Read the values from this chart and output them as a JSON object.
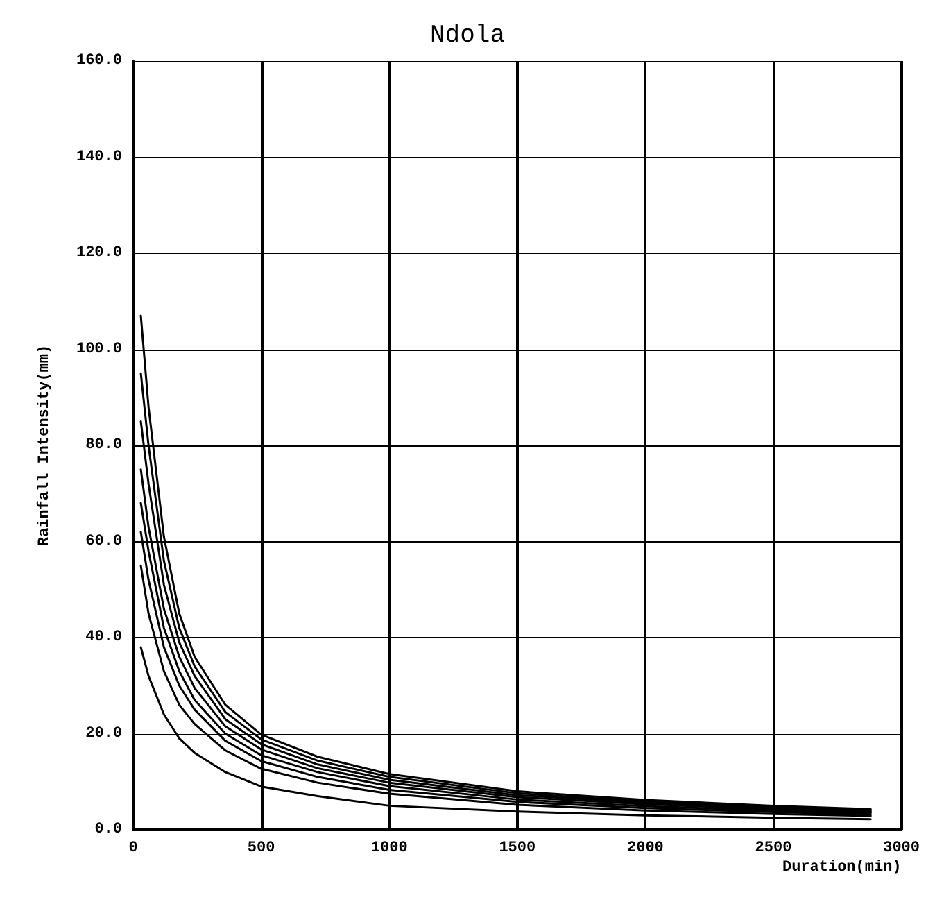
{
  "chart_data": {
    "type": "line",
    "title": "Ndola",
    "xlabel": "Duration(min)",
    "ylabel": "Rainfall Intensity(mm)",
    "x": [
      30,
      60,
      120,
      180,
      240,
      360,
      500,
      720,
      1000,
      1500,
      2000,
      2500,
      2880
    ],
    "series": [
      {
        "color": "#000000",
        "values": [
          38,
          32,
          24,
          19,
          16,
          12,
          9,
          7,
          5,
          3.8,
          3,
          2.5,
          2.2
        ]
      },
      {
        "color": "#000000",
        "values": [
          55,
          45,
          33,
          26,
          22,
          16.5,
          12.7,
          9.8,
          7.5,
          5.2,
          4,
          3.3,
          2.9
        ]
      },
      {
        "color": "#000000",
        "values": [
          62,
          52,
          38,
          30,
          25,
          18.5,
          14.3,
          11,
          8.3,
          5.8,
          4.5,
          3.7,
          3.2
        ]
      },
      {
        "color": "#000000",
        "values": [
          68,
          58,
          42,
          33,
          27,
          20,
          15.5,
          12,
          9.1,
          6.3,
          4.9,
          4,
          3.5
        ]
      },
      {
        "color": "#000000",
        "values": [
          75,
          63,
          46,
          36,
          29.5,
          21.5,
          16.7,
          12.8,
          9.8,
          6.8,
          5.3,
          4.3,
          3.7
        ]
      },
      {
        "color": "#000000",
        "values": [
          85,
          72,
          51,
          39,
          32,
          23,
          17.8,
          13.6,
          10.4,
          7.2,
          5.6,
          4.6,
          3.9
        ]
      },
      {
        "color": "#000000",
        "values": [
          95,
          80,
          56,
          42,
          34,
          24.5,
          18.8,
          14.4,
          11,
          7.6,
          5.9,
          4.8,
          4.1
        ]
      },
      {
        "color": "#000000",
        "values": [
          107,
          88,
          61,
          45,
          36,
          26,
          19.8,
          15.2,
          11.6,
          8,
          6.2,
          5,
          4.3
        ]
      }
    ],
    "xlim": [
      0,
      3000
    ],
    "xticks": [
      0,
      500,
      1000,
      1500,
      2000,
      2500,
      3000
    ],
    "ylim": [
      0,
      160
    ],
    "yticks": [
      {
        "value": 0,
        "label": "0.0"
      },
      {
        "value": 20,
        "label": "20.0"
      },
      {
        "value": 40,
        "label": "40.0"
      },
      {
        "value": 60,
        "label": "60.0"
      },
      {
        "value": 80,
        "label": "80.0"
      },
      {
        "value": 100,
        "label": "100.0"
      },
      {
        "value": 120,
        "label": "120.0"
      },
      {
        "value": 140,
        "label": "140.0"
      },
      {
        "value": 160,
        "label": "160.0"
      }
    ],
    "grid": true,
    "line_style": "solid",
    "marker": "none"
  }
}
